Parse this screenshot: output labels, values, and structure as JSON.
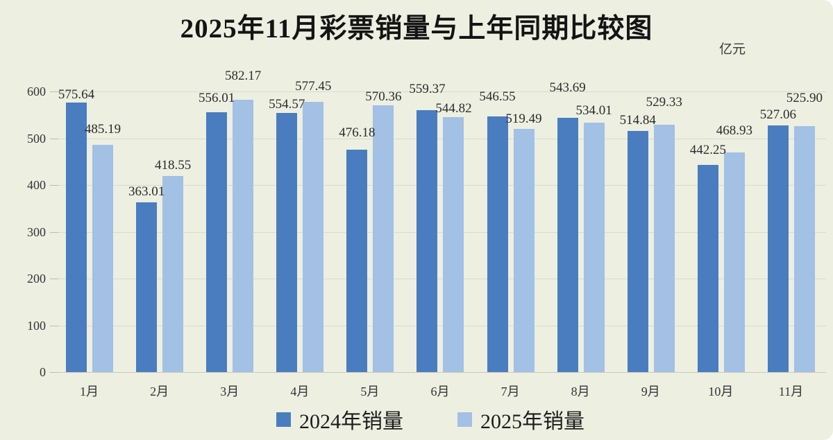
{
  "title": "2025年11月彩票销量与上年同期比较图",
  "unit_label": "亿元",
  "chart_data": {
    "type": "bar",
    "categories": [
      "1月",
      "2月",
      "3月",
      "4月",
      "5月",
      "6月",
      "7月",
      "8月",
      "9月",
      "10月",
      "11月"
    ],
    "series": [
      {
        "name": "2024年销量",
        "color": "#4a7dbf",
        "values": [
          575.64,
          363.01,
          556.01,
          554.57,
          476.18,
          559.37,
          546.55,
          543.69,
          514.84,
          442.25,
          527.06
        ]
      },
      {
        "name": "2025年销量",
        "color": "#a3c0e5",
        "values": [
          485.19,
          418.55,
          582.17,
          577.45,
          570.36,
          544.82,
          519.49,
          534.01,
          529.33,
          468.93,
          525.9
        ]
      }
    ],
    "title": "2025年11月彩票销量与上年同期比较图",
    "ylabel_unit": "亿元",
    "ylim": [
      0,
      600
    ],
    "yticks": [
      0,
      100,
      200,
      300,
      400,
      500,
      600
    ],
    "grid": true,
    "value_labels": true,
    "value_label_decimals": 2,
    "legend_position": "bottom"
  },
  "colors": {
    "background": "#edefe1",
    "bar_2024": "#4a7dbf",
    "bar_2025": "#a3c0e5",
    "gridline": "#d8dbca",
    "text": "#2b2b2b"
  }
}
